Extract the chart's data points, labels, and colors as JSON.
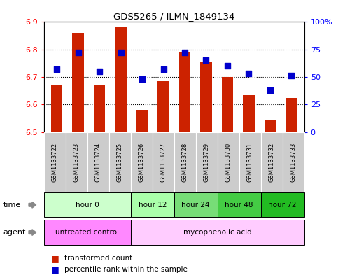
{
  "title": "GDS5265 / ILMN_1849134",
  "samples": [
    "GSM1133722",
    "GSM1133723",
    "GSM1133724",
    "GSM1133725",
    "GSM1133726",
    "GSM1133727",
    "GSM1133728",
    "GSM1133729",
    "GSM1133730",
    "GSM1133731",
    "GSM1133732",
    "GSM1133733"
  ],
  "bar_values": [
    6.67,
    6.86,
    6.67,
    6.88,
    6.58,
    6.685,
    6.79,
    6.755,
    6.7,
    6.635,
    6.545,
    6.625
  ],
  "bar_bottom": 6.5,
  "percentile_values": [
    57,
    72,
    55,
    72,
    48,
    57,
    72,
    65,
    60,
    53,
    38,
    51
  ],
  "ylim": [
    6.5,
    6.9
  ],
  "yticks": [
    6.5,
    6.6,
    6.7,
    6.8,
    6.9
  ],
  "right_yticks": [
    0,
    25,
    50,
    75,
    100
  ],
  "bar_color": "#cc2200",
  "dot_color": "#0000cc",
  "time_groups": [
    {
      "label": "hour 0",
      "start": 0,
      "end": 3,
      "color": "#ccffcc"
    },
    {
      "label": "hour 12",
      "start": 4,
      "end": 5,
      "color": "#aaffaa"
    },
    {
      "label": "hour 24",
      "start": 6,
      "end": 7,
      "color": "#77dd77"
    },
    {
      "label": "hour 48",
      "start": 8,
      "end": 9,
      "color": "#44cc44"
    },
    {
      "label": "hour 72",
      "start": 10,
      "end": 11,
      "color": "#22bb22"
    }
  ],
  "agent_groups": [
    {
      "label": "untreated control",
      "start": 0,
      "end": 3,
      "color": "#ff88ff"
    },
    {
      "label": "mycophenolic acid",
      "start": 4,
      "end": 11,
      "color": "#ffccff"
    }
  ],
  "dot_size": 35,
  "bar_width": 0.55
}
